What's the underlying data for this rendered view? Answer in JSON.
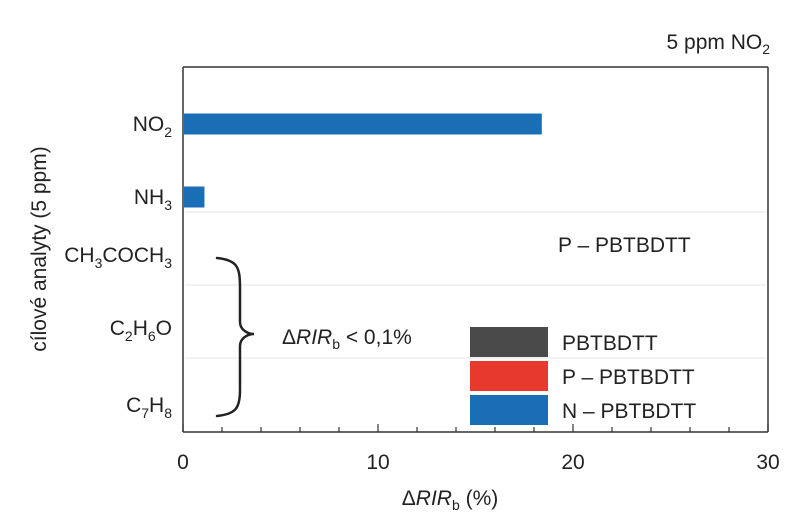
{
  "chart_data": {
    "type": "bar",
    "orientation": "horizontal",
    "title": "5 ppm NO",
    "title_subscript": "2",
    "xlabel_prefix": "ΔRIR",
    "xlabel_sub": "b",
    "xlabel_suffix": " (%)",
    "ylabel": "cílové analyty (5 ppm)",
    "xlim": [
      0,
      30
    ],
    "xticks": [
      "0",
      "10",
      "20",
      "30"
    ],
    "grid": false,
    "legend_position": "bottom-right",
    "categories": [
      {
        "parts": [
          [
            "NO",
            false
          ],
          [
            "2",
            true
          ]
        ]
      },
      {
        "parts": [
          [
            "NH",
            false
          ],
          [
            "3",
            true
          ]
        ]
      },
      {
        "parts": [
          [
            "CH",
            false
          ],
          [
            "3",
            true
          ],
          [
            "COCH",
            false
          ],
          [
            "3",
            true
          ]
        ]
      },
      {
        "parts": [
          [
            "C",
            false
          ],
          [
            "2",
            true
          ],
          [
            "H",
            false
          ],
          [
            "6",
            true
          ],
          [
            "O",
            false
          ]
        ]
      },
      {
        "parts": [
          [
            "C",
            false
          ],
          [
            "7",
            true
          ],
          [
            "H",
            false
          ],
          [
            "8",
            true
          ]
        ]
      }
    ],
    "series": [
      {
        "name": "PBTBDTT",
        "color": "#4a4a4a",
        "values": [
          null,
          null,
          null,
          null,
          null
        ]
      },
      {
        "name": "P – PBTBDTT",
        "color": "#e8392e",
        "values": [
          null,
          null,
          null,
          null,
          null
        ]
      },
      {
        "name": "N – PBTBDTT",
        "color": "#1a6eb5",
        "values": [
          18.4,
          1.1,
          null,
          null,
          null
        ]
      }
    ],
    "annotations": {
      "p_label": "P – PBTBDTT",
      "threshold_prefix": "ΔRIR",
      "threshold_sub": "b",
      "threshold_suffix": " < 0,1%"
    }
  }
}
